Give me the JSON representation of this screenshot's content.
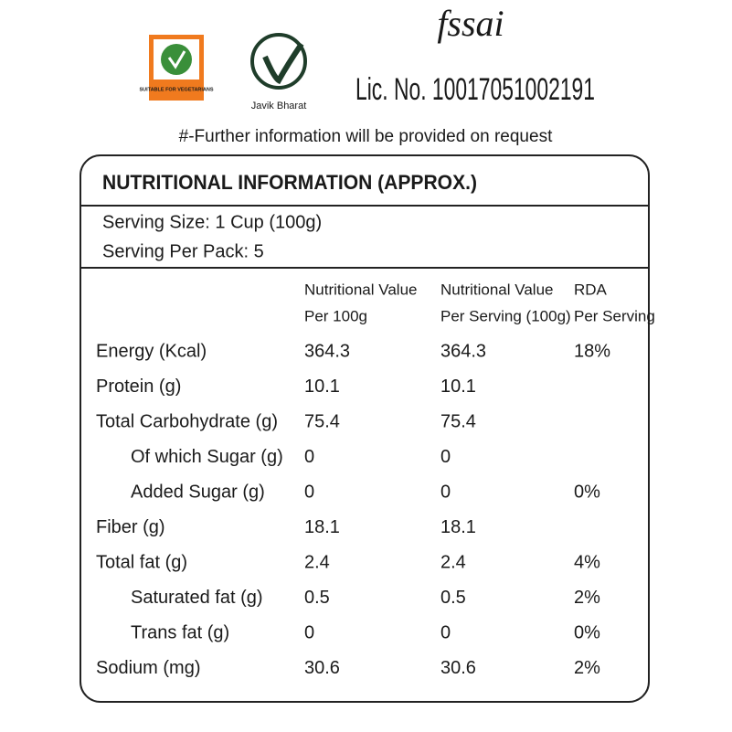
{
  "logos": {
    "veg_label": "SUITABLE FOR VEGETARIANS",
    "brand": "Javik Bharat",
    "fssai": "fssai",
    "license": "Lic. No. 10017051002191"
  },
  "note": "#-Further information will be provided on request",
  "table": {
    "title": "NUTRITIONAL INFORMATION (APPROX.)",
    "serving": [
      "Serving Size: 1 Cup (100g)",
      "Serving Per Pack: 5"
    ],
    "headers": [
      [
        "Nutritional Value",
        "Per 100g"
      ],
      [
        "Nutritional Value",
        "Per Serving (100g)"
      ],
      [
        "RDA",
        "Per Serving"
      ]
    ],
    "rows": [
      {
        "label": "Energy (Kcal)",
        "values": [
          "364.3",
          "364.3",
          "18%"
        ]
      },
      {
        "label": "Protein (g)",
        "values": [
          "10.1",
          "10.1"
        ]
      },
      {
        "label": "Total Carbohydrate (g)",
        "values": [
          "75.4",
          "75.4"
        ],
        "sub": [
          {
            "label": "Of which Sugar (g)",
            "values": [
              "0",
              "0"
            ]
          },
          {
            "label": "Added Sugar (g)",
            "values": [
              "0",
              "0",
              "0%"
            ]
          }
        ]
      },
      {
        "label": "Fiber (g)",
        "values": [
          "18.1",
          "18.1"
        ]
      },
      {
        "label": "Total fat (g)",
        "values": [
          "2.4",
          "2.4",
          "4%"
        ],
        "sub": [
          {
            "label": "Saturated fat (g)",
            "values": [
              "0.5",
              "0.5",
              "2%"
            ]
          },
          {
            "label": "Trans fat (g)",
            "values": [
              "0",
              "0",
              "0%"
            ]
          }
        ]
      },
      {
        "label": "Sodium (mg)",
        "values": [
          "30.6",
          "30.6",
          "2%"
        ]
      }
    ]
  }
}
